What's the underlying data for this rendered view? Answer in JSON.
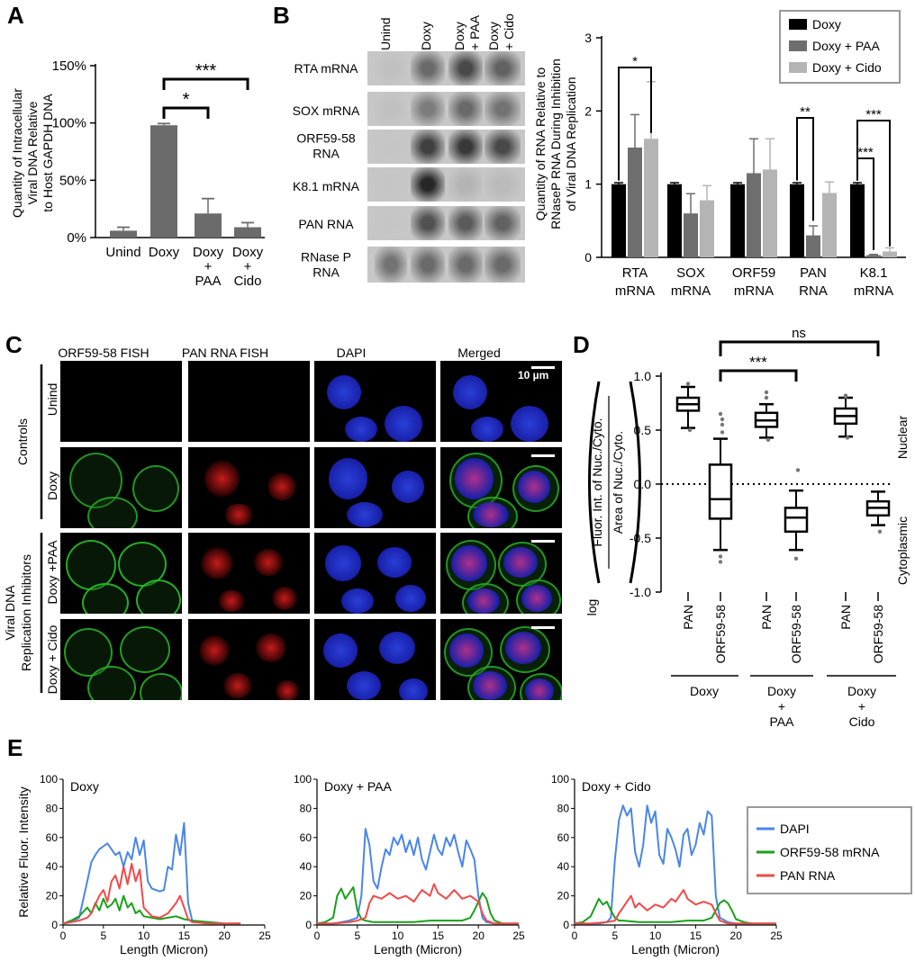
{
  "colors": {
    "doxy": "#000000",
    "paa": "#6e6e6e",
    "cido": "#b4b4b4",
    "dapi": "#4a86e8",
    "orf": "#1aa11a",
    "pan": "#f04a4a",
    "grayBar": "#6b6b6b"
  },
  "panels": {
    "A": "A",
    "B": "B",
    "C": "C",
    "D": "D",
    "E": "E"
  },
  "panelA": {
    "ylabel_lines": [
      "Quantity of Intracellular",
      "Viral DNA Relative",
      "to Host GAPDH DNA"
    ],
    "yticks": [
      "0%",
      "50%",
      "100%",
      "150%"
    ],
    "categories": [
      [
        "Unind"
      ],
      [
        "Doxy"
      ],
      [
        "Doxy",
        "+",
        "PAA"
      ],
      [
        "Doxy",
        "+",
        "Cido"
      ]
    ],
    "sig": [
      "*",
      "***"
    ]
  },
  "panelB": {
    "lanes": [
      "Unind",
      "Doxy",
      "Doxy",
      "+ PAA",
      "Doxy",
      "+ Cido"
    ],
    "rows": [
      [
        "RTA mRNA"
      ],
      [
        "SOX mRNA"
      ],
      [
        "ORF59-58",
        "RNA"
      ],
      [
        "K8.1 mRNA"
      ],
      [
        "PAN RNA"
      ],
      [
        "RNase P",
        "RNA"
      ]
    ],
    "ylabel_lines": [
      "Quantity of RNA Relative to",
      "RNaseP RNA During Inhibition",
      "of Viral DNA Replication"
    ],
    "yticks": [
      "0",
      "1",
      "2",
      "3"
    ],
    "categories": [
      [
        "RTA",
        "mRNA"
      ],
      [
        "SOX",
        "mRNA"
      ],
      [
        "ORF59",
        "mRNA"
      ],
      [
        "PAN",
        "RNA"
      ],
      [
        "K8.1",
        "mRNA"
      ]
    ],
    "legend": [
      "Doxy",
      "Doxy + PAA",
      "Doxy + Cido"
    ],
    "sig": [
      "*",
      "**",
      "***",
      "***"
    ]
  },
  "panelC": {
    "columns": [
      "ORF59-58 FISH",
      "PAN RNA FISH",
      "DAPI",
      "Merged"
    ],
    "rows": [
      "Unind",
      "Doxy",
      "Doxy +PAA",
      "Doxy + Cido"
    ],
    "groups": [
      "Controls",
      "Viral DNA",
      "Replication Inhibitors"
    ],
    "scalebar_label": "10 µm"
  },
  "panelD": {
    "ylabel_top": "Fluor. Int. of Nuc./Cyto.",
    "ylabel_bottom": "Area of Nuc./Cyto.",
    "log_label": "log",
    "yticks": [
      "-1.0",
      "-0.5",
      "0.0",
      "0.5",
      "1.0"
    ],
    "x_labels": [
      "PAN",
      "ORF59-58",
      "PAN",
      "ORF59-58",
      "PAN",
      "ORF59-58"
    ],
    "groups": [
      [
        "Doxy"
      ],
      [
        "Doxy",
        "+",
        "PAA"
      ],
      [
        "Doxy",
        "+",
        "Cido"
      ]
    ],
    "side_labels": [
      "Nuclear",
      "Cytoplasmic"
    ],
    "sig": [
      "ns",
      "***"
    ]
  },
  "panelE": {
    "ylabel": "Relative Fluor. Intensity",
    "xlabel": "Length (Micron)",
    "titles": [
      "Doxy",
      "Doxy + PAA",
      "Doxy + Cido"
    ],
    "yticks": [
      "0",
      "20",
      "40",
      "60",
      "80",
      "100"
    ],
    "xticks": [
      "0",
      "5",
      "10",
      "15",
      "20",
      "25"
    ],
    "legend": [
      "DAPI",
      "ORF59-58 mRNA",
      "PAN RNA"
    ]
  },
  "chart_data": [
    {
      "type": "bar",
      "panel": "A",
      "categories": [
        "Unind",
        "Doxy",
        "Doxy + PAA",
        "Doxy + Cido"
      ],
      "values": [
        6,
        98,
        21,
        9
      ],
      "errors": [
        3,
        1.5,
        13,
        4
      ],
      "ylabel": "Quantity of Intracellular Viral DNA Relative to Host GAPDH DNA",
      "ylim": [
        0,
        150
      ],
      "y_unit": "%",
      "significance": [
        {
          "from": "Doxy",
          "to": "Doxy + PAA",
          "label": "*"
        },
        {
          "from": "Doxy",
          "to": "Doxy + Cido",
          "label": "***"
        }
      ]
    },
    {
      "type": "bar",
      "panel": "B",
      "categories": [
        "RTA mRNA",
        "SOX mRNA",
        "ORF59 mRNA",
        "PAN RNA",
        "K8.1 mRNA"
      ],
      "series": [
        {
          "name": "Doxy",
          "values": [
            1.0,
            1.0,
            1.0,
            1.0,
            1.0
          ],
          "errors": [
            0.02,
            0.02,
            0.02,
            0.02,
            0.02
          ]
        },
        {
          "name": "Doxy + PAA",
          "values": [
            1.5,
            0.6,
            1.15,
            0.3,
            0.03
          ],
          "errors": [
            0.45,
            0.27,
            0.47,
            0.13,
            0.01
          ]
        },
        {
          "name": "Doxy + Cido",
          "values": [
            1.62,
            0.78,
            1.2,
            0.88,
            0.08
          ],
          "errors": [
            0.78,
            0.2,
            0.42,
            0.15,
            0.05
          ]
        }
      ],
      "ylabel": "Quantity of RNA Relative to RNaseP RNA During Inhibition of Viral DNA Replication",
      "ylim": [
        0,
        3
      ],
      "legend_position": "top-right",
      "significance": [
        {
          "category": "RTA mRNA",
          "from": "Doxy",
          "to": "Doxy + Cido",
          "label": "*"
        },
        {
          "category": "PAN RNA",
          "from": "Doxy",
          "to": "Doxy + PAA",
          "label": "**"
        },
        {
          "category": "K8.1 mRNA",
          "from": "Doxy",
          "to": "Doxy + PAA",
          "label": "***"
        },
        {
          "category": "K8.1 mRNA",
          "from": "Doxy",
          "to": "Doxy + Cido",
          "label": "***"
        }
      ]
    },
    {
      "type": "box",
      "panel": "D",
      "categories": [
        "PAN (Doxy)",
        "ORF59-58 (Doxy)",
        "PAN (Doxy + PAA)",
        "ORF59-58 (Doxy + PAA)",
        "PAN (Doxy + Cido)",
        "ORF59-58 (Doxy + Cido)"
      ],
      "boxes": [
        {
          "whisker_low": 0.52,
          "q1": 0.68,
          "median": 0.74,
          "q3": 0.8,
          "whisker_high": 0.9,
          "outliers": [
            0.93,
            0.5
          ]
        },
        {
          "whisker_low": -0.61,
          "q1": -0.32,
          "median": -0.14,
          "q3": 0.18,
          "whisker_high": 0.42,
          "outliers": [
            0.65,
            0.6,
            0.55,
            0.48,
            -0.72,
            -0.67
          ]
        },
        {
          "whisker_low": 0.43,
          "q1": 0.53,
          "median": 0.59,
          "q3": 0.66,
          "whisker_high": 0.74,
          "outliers": [
            0.85,
            0.8,
            0.41
          ]
        },
        {
          "whisker_low": -0.61,
          "q1": -0.44,
          "median": -0.31,
          "q3": -0.22,
          "whisker_high": -0.06,
          "outliers": [
            0.13,
            -0.69
          ]
        },
        {
          "whisker_low": 0.44,
          "q1": 0.56,
          "median": 0.63,
          "q3": 0.7,
          "whisker_high": 0.8,
          "outliers": [
            0.82,
            0.81,
            0.43
          ]
        },
        {
          "whisker_low": -0.38,
          "q1": -0.29,
          "median": -0.22,
          "q3": -0.16,
          "whisker_high": -0.07,
          "outliers": [
            -0.44
          ]
        }
      ],
      "ylim": [
        -1.0,
        1.0
      ],
      "reference_line": 0,
      "significance": [
        {
          "from": "ORF59-58 (Doxy)",
          "to": "ORF59-58 (Doxy + PAA)",
          "label": "***"
        },
        {
          "from": "ORF59-58 (Doxy)",
          "to": "ORF59-58 (Doxy + Cido)",
          "label": "ns"
        }
      ]
    },
    {
      "type": "line",
      "panel": "E",
      "title": "Doxy",
      "xlim": [
        0,
        25
      ],
      "ylim": [
        0,
        100
      ],
      "xlabel": "Length (Micron)",
      "ylabel": "Relative Fluor. Intensity",
      "series": [
        {
          "name": "DAPI",
          "x": [
            0,
            1,
            2,
            3,
            3.5,
            4,
            4.5,
            5,
            5.5,
            6,
            6.5,
            7,
            7.5,
            8,
            8.5,
            9,
            9.5,
            10,
            10.5,
            11,
            11.5,
            12,
            12.5,
            13,
            13.5,
            14,
            14.5,
            15,
            15.5,
            16,
            17,
            18,
            20,
            22
          ],
          "y": [
            1,
            2,
            5,
            30,
            43,
            48,
            52,
            54,
            56,
            52,
            48,
            50,
            40,
            50,
            45,
            60,
            48,
            58,
            30,
            25,
            24,
            23,
            24,
            40,
            38,
            62,
            48,
            70,
            15,
            3,
            2,
            2,
            1,
            1
          ]
        },
        {
          "name": "ORF59-58 mRNA",
          "x": [
            0,
            1,
            2,
            3,
            3.5,
            4,
            4.5,
            5,
            5.5,
            6,
            6.5,
            7,
            7.5,
            8,
            8.5,
            9,
            9.5,
            10,
            11,
            12,
            13,
            14,
            15,
            16,
            18,
            20,
            22
          ],
          "y": [
            1,
            3,
            6,
            12,
            8,
            15,
            10,
            18,
            12,
            14,
            18,
            10,
            20,
            12,
            15,
            8,
            10,
            6,
            5,
            4,
            5,
            6,
            4,
            3,
            2,
            1,
            1
          ]
        },
        {
          "name": "PAN RNA",
          "x": [
            0,
            1,
            2,
            3,
            3.5,
            4,
            4.5,
            5,
            5.5,
            6,
            6.5,
            7,
            7.5,
            8,
            8.5,
            9,
            9.5,
            10,
            11,
            12,
            13,
            14,
            14.5,
            15,
            15.5,
            16,
            18,
            20,
            22
          ],
          "y": [
            1,
            2,
            3,
            5,
            8,
            14,
            20,
            24,
            16,
            30,
            34,
            25,
            40,
            28,
            42,
            30,
            38,
            12,
            6,
            5,
            8,
            15,
            20,
            12,
            4,
            2,
            1,
            1,
            1
          ]
        }
      ]
    },
    {
      "type": "line",
      "panel": "E",
      "title": "Doxy + PAA",
      "xlim": [
        0,
        25
      ],
      "ylim": [
        0,
        100
      ],
      "xlabel": "Length (Micron)",
      "ylabel": "Relative Fluor. Intensity",
      "series": [
        {
          "name": "DAPI",
          "x": [
            0,
            1,
            2,
            3,
            4,
            5,
            5.5,
            6,
            6.5,
            7,
            7.5,
            8,
            8.5,
            9,
            9.5,
            10,
            10.5,
            11,
            11.5,
            12,
            12.5,
            13,
            13.5,
            14,
            14.5,
            15,
            15.5,
            16,
            16.5,
            17,
            17.5,
            18,
            18.5,
            19,
            19.5,
            20,
            20.5,
            21,
            22,
            23,
            25
          ],
          "y": [
            1,
            1,
            1,
            2,
            3,
            5,
            20,
            66,
            55,
            30,
            25,
            40,
            52,
            48,
            60,
            55,
            62,
            50,
            58,
            48,
            60,
            45,
            38,
            50,
            62,
            52,
            48,
            60,
            54,
            62,
            50,
            40,
            58,
            52,
            45,
            20,
            5,
            2,
            1,
            1,
            1
          ]
        },
        {
          "name": "ORF59-58 mRNA",
          "x": [
            0,
            1,
            2,
            2.5,
            3,
            3.5,
            4,
            4.5,
            5,
            5.5,
            6,
            7,
            8,
            10,
            12,
            14,
            16,
            18,
            19,
            19.5,
            20,
            20.5,
            21,
            21.5,
            22,
            23,
            25
          ],
          "y": [
            1,
            2,
            5,
            20,
            25,
            18,
            22,
            26,
            10,
            4,
            3,
            2,
            2,
            2,
            2,
            3,
            3,
            3,
            5,
            10,
            16,
            22,
            18,
            8,
            3,
            1,
            1
          ]
        },
        {
          "name": "PAN RNA",
          "x": [
            0,
            2,
            4,
            5,
            6,
            6.5,
            7,
            8,
            9,
            10,
            11,
            12,
            13,
            14,
            14.5,
            15,
            16,
            17,
            18,
            19,
            20,
            20.5,
            21,
            22,
            25
          ],
          "y": [
            1,
            1,
            2,
            3,
            5,
            15,
            20,
            18,
            22,
            18,
            20,
            16,
            24,
            20,
            28,
            22,
            18,
            24,
            18,
            20,
            16,
            8,
            3,
            1,
            1
          ]
        }
      ]
    },
    {
      "type": "line",
      "panel": "E",
      "title": "Doxy + Cido",
      "xlim": [
        0,
        25
      ],
      "ylim": [
        0,
        100
      ],
      "xlabel": "Length (Micron)",
      "ylabel": "Relative Fluor. Intensity",
      "series": [
        {
          "name": "DAPI",
          "x": [
            0,
            2,
            3,
            4,
            4.5,
            5,
            5.5,
            6,
            6.5,
            7,
            7.5,
            8,
            8.5,
            9,
            9.5,
            10,
            10.5,
            11,
            11.5,
            12,
            12.5,
            13,
            13.5,
            14,
            14.5,
            15,
            15.5,
            16,
            16.5,
            17,
            17.5,
            18,
            19,
            20,
            22,
            25
          ],
          "y": [
            1,
            1,
            1,
            2,
            5,
            45,
            72,
            82,
            75,
            80,
            50,
            40,
            55,
            82,
            70,
            78,
            48,
            42,
            66,
            60,
            52,
            40,
            62,
            66,
            48,
            55,
            70,
            62,
            78,
            75,
            20,
            5,
            2,
            1,
            1,
            1
          ]
        },
        {
          "name": "ORF59-58 mRNA",
          "x": [
            0,
            1,
            2,
            2.5,
            3,
            3.5,
            4,
            4.5,
            5,
            5.5,
            6,
            8,
            10,
            12,
            14,
            16,
            17,
            17.5,
            18,
            18.5,
            19,
            19.5,
            20,
            21,
            22,
            25
          ],
          "y": [
            1,
            2,
            6,
            12,
            18,
            14,
            16,
            10,
            5,
            3,
            3,
            2,
            2,
            2,
            3,
            3,
            5,
            10,
            15,
            17,
            15,
            10,
            4,
            2,
            1,
            1
          ]
        },
        {
          "name": "PAN RNA",
          "x": [
            0,
            2,
            4,
            5,
            5.5,
            6,
            6.5,
            7,
            7.5,
            8,
            9,
            10,
            11,
            12,
            12.5,
            13,
            13.5,
            14,
            15,
            16,
            17,
            17.5,
            18,
            19,
            22,
            25
          ],
          "y": [
            1,
            1,
            2,
            3,
            8,
            12,
            16,
            20,
            12,
            15,
            10,
            14,
            12,
            18,
            16,
            20,
            24,
            18,
            14,
            16,
            14,
            8,
            3,
            1,
            1,
            1
          ]
        }
      ]
    }
  ]
}
